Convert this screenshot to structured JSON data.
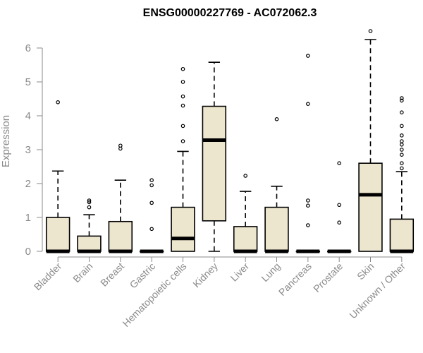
{
  "chart_data": {
    "type": "boxplot",
    "title": "ENSG00000227769 - AC072062.3",
    "ylabel": "Expression",
    "xlabel": "",
    "ylim": [
      0,
      6.6
    ],
    "yticks": [
      0,
      1,
      2,
      3,
      4,
      5,
      6
    ],
    "grid": false,
    "box_color": "#ede6cf",
    "categories": [
      "Bladder",
      "Brain",
      "Breast",
      "Gastric",
      "Hematopoietic cells",
      "Kidney",
      "Liver",
      "Lung",
      "Pancreas",
      "Prostate",
      "Skin",
      "Unknown / Other"
    ],
    "boxes": [
      {
        "q1": 0,
        "median": 0,
        "q3": 1.0,
        "whisker_low": 0,
        "whisker_high": 2.37,
        "outliers": [
          4.4
        ]
      },
      {
        "q1": 0,
        "median": 0,
        "q3": 0.45,
        "whisker_low": 0,
        "whisker_high": 1.08,
        "outliers": [
          1.3,
          1.45,
          1.5
        ]
      },
      {
        "q1": 0,
        "median": 0,
        "q3": 0.88,
        "whisker_low": 0,
        "whisker_high": 2.1,
        "outliers": [
          3.03,
          3.12
        ]
      },
      {
        "q1": 0,
        "median": 0,
        "q3": 0,
        "whisker_low": 0,
        "whisker_high": 0,
        "outliers": [
          0.66,
          1.43,
          1.95,
          2.1
        ]
      },
      {
        "q1": 0,
        "median": 0.38,
        "q3": 1.3,
        "whisker_low": 0,
        "whisker_high": 2.95,
        "outliers": [
          3.25,
          3.7,
          4.3,
          4.57,
          5.0,
          5.38
        ]
      },
      {
        "q1": 0.9,
        "median": 3.28,
        "q3": 4.28,
        "whisker_low": 0,
        "whisker_high": 5.58,
        "outliers": []
      },
      {
        "q1": 0,
        "median": 0,
        "q3": 0.73,
        "whisker_low": 0,
        "whisker_high": 1.77,
        "outliers": [
          2.23
        ]
      },
      {
        "q1": 0,
        "median": 0,
        "q3": 1.3,
        "whisker_low": 0,
        "whisker_high": 1.92,
        "outliers": [
          3.9
        ]
      },
      {
        "q1": 0,
        "median": 0,
        "q3": 0,
        "whisker_low": 0,
        "whisker_high": 0,
        "outliers": [
          0.77,
          1.35,
          1.5,
          4.35,
          5.77
        ]
      },
      {
        "q1": 0,
        "median": 0,
        "q3": 0,
        "whisker_low": 0,
        "whisker_high": 0,
        "outliers": [
          0.85,
          1.37,
          2.6
        ]
      },
      {
        "q1": 0,
        "median": 1.67,
        "q3": 2.6,
        "whisker_low": 0,
        "whisker_high": 6.25,
        "outliers": [
          6.5
        ]
      },
      {
        "q1": 0,
        "median": 0,
        "q3": 0.95,
        "whisker_low": 0,
        "whisker_high": 2.35,
        "outliers": [
          2.45,
          2.6,
          2.85,
          3.0,
          3.15,
          3.25,
          3.42,
          3.7,
          4.1,
          4.45,
          4.52
        ]
      }
    ]
  }
}
